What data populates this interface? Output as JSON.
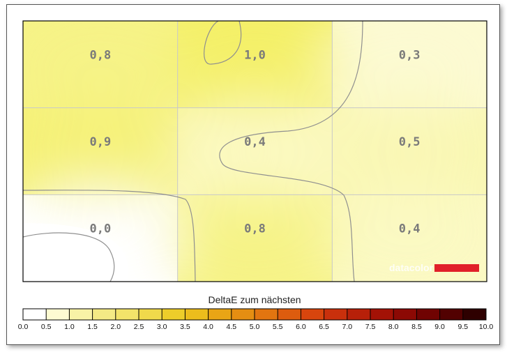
{
  "chart_data": {
    "type": "heatmap",
    "rows": 3,
    "cols": 3,
    "values": [
      [
        0.8,
        1.0,
        0.3
      ],
      [
        0.9,
        0.4,
        0.5
      ],
      [
        0.0,
        0.8,
        0.4
      ]
    ],
    "cell_labels": [
      [
        "0,8",
        "1,0",
        "0,3"
      ],
      [
        "0,9",
        "0,4",
        "0,5"
      ],
      [
        "0,0",
        "0,8",
        "0,4"
      ]
    ],
    "contour_levels": [
      0.5,
      1.0
    ],
    "grid": true,
    "colorbar": {
      "title": "DeltaE zum nächsten",
      "min": 0.0,
      "max": 10.0,
      "ticks": [
        "0.0",
        "0.5",
        "1.0",
        "1.5",
        "2.0",
        "2.5",
        "3.0",
        "3.5",
        "4.0",
        "4.5",
        "5.0",
        "5.5",
        "6.0",
        "6.5",
        "7.0",
        "7.5",
        "8.0",
        "8.5",
        "9.0",
        "9.5",
        "10.0"
      ],
      "colors": [
        "#ffffff",
        "#fdfbd2",
        "#f8f2a6",
        "#f4ea85",
        "#f2e36a",
        "#f0d94b",
        "#edcd2a",
        "#ecbd1c",
        "#e9a515",
        "#e58e12",
        "#e27510",
        "#dd5c0e",
        "#d8450d",
        "#c9300c",
        "#b72009",
        "#a31206",
        "#8c0904",
        "#700302",
        "#520101",
        "#2e0000"
      ]
    },
    "watermark": "datacolor",
    "watermark_color": "#e1202a"
  }
}
